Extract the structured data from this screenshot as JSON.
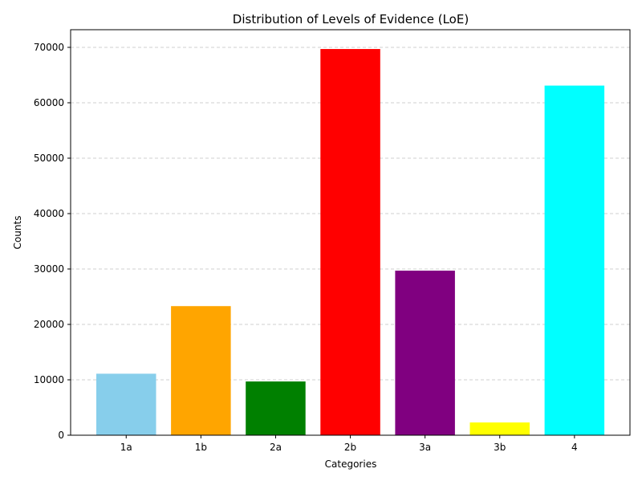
{
  "chart_data": {
    "type": "bar",
    "title": "Distribution of Levels of Evidence (LoE)",
    "xlabel": "Categories",
    "ylabel": "Counts",
    "categories": [
      "1a",
      "1b",
      "2a",
      "2b",
      "3a",
      "3b",
      "4"
    ],
    "values": [
      11100,
      23300,
      9700,
      69700,
      29700,
      2300,
      63100
    ],
    "colors": [
      "#87ceeb",
      "#ffa500",
      "#008000",
      "#ff0000",
      "#800080",
      "#ffff00",
      "#00ffff"
    ],
    "ylim": [
      0,
      73185
    ],
    "yticks": [
      0,
      10000,
      20000,
      30000,
      40000,
      50000,
      60000,
      70000
    ],
    "grid": {
      "y": true,
      "x": false,
      "style": "dashed",
      "color": "#c0c0c0"
    },
    "legend": "none"
  }
}
